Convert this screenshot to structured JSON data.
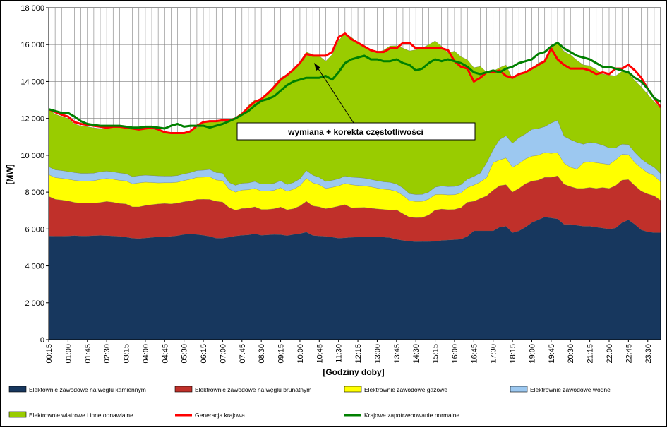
{
  "chart_data": {
    "type": "area",
    "xlabel": "[Godziny doby]",
    "ylabel": "[MW]",
    "ylim": [
      0,
      18000
    ],
    "y_ticks": [
      "0",
      "2 000",
      "4 000",
      "6 000",
      "8 000",
      "10 000",
      "12 000",
      "14 000",
      "16 000",
      "18 000"
    ],
    "y_tick_values": [
      0,
      2000,
      4000,
      6000,
      8000,
      10000,
      12000,
      14000,
      16000,
      18000
    ],
    "grid": true,
    "legend_position": "bottom",
    "x": [
      "00:15",
      "00:30",
      "00:45",
      "01:00",
      "01:15",
      "01:30",
      "01:45",
      "02:00",
      "02:15",
      "02:30",
      "02:45",
      "03:00",
      "03:15",
      "03:30",
      "03:45",
      "04:00",
      "04:15",
      "04:30",
      "04:45",
      "05:00",
      "05:15",
      "05:30",
      "05:45",
      "06:00",
      "06:15",
      "06:30",
      "06:45",
      "07:00",
      "07:15",
      "07:30",
      "07:45",
      "08:00",
      "08:15",
      "08:30",
      "08:45",
      "09:00",
      "09:15",
      "09:30",
      "09:45",
      "10:00",
      "10:15",
      "10:30",
      "10:45",
      "11:00",
      "11:15",
      "11:30",
      "11:45",
      "12:00",
      "12:15",
      "12:30",
      "12:45",
      "13:00",
      "13:15",
      "13:30",
      "13:45",
      "14:00",
      "14:15",
      "14:30",
      "14:45",
      "15:00",
      "15:15",
      "15:30",
      "15:45",
      "16:00",
      "16:15",
      "16:30",
      "16:45",
      "17:00",
      "17:15",
      "17:30",
      "17:45",
      "18:00",
      "18:15",
      "18:30",
      "18:45",
      "19:00",
      "19:15",
      "19:30",
      "19:45",
      "20:00",
      "20:15",
      "20:30",
      "20:45",
      "21:00",
      "21:15",
      "21:30",
      "21:45",
      "22:00",
      "22:15",
      "22:30",
      "22:45",
      "23:00",
      "23:15",
      "23:30",
      "23:45",
      "24:00"
    ],
    "x_tick_labels": [
      "00:15",
      "01:00",
      "01:45",
      "02:30",
      "03:15",
      "04:00",
      "04:45",
      "05:30",
      "06:15",
      "07:00",
      "07:45",
      "08:30",
      "09:15",
      "10:00",
      "10:45",
      "11:30",
      "12:15",
      "13:00",
      "13:45",
      "14:30",
      "15:15",
      "16:00",
      "16:45",
      "17:30",
      "18:15",
      "19:00",
      "19:45",
      "20:30",
      "21:15",
      "22:00",
      "22:45",
      "23:30"
    ],
    "annotation": "wymiana + korekta częstotliwości",
    "stack_series": [
      {
        "name": "Elektownie zawodowe na węglu kamiennym",
        "color": "#17375E",
        "values": [
          5620,
          5610,
          5610,
          5620,
          5640,
          5620,
          5620,
          5640,
          5650,
          5640,
          5620,
          5600,
          5560,
          5500,
          5480,
          5510,
          5540,
          5580,
          5580,
          5600,
          5640,
          5700,
          5740,
          5700,
          5660,
          5600,
          5500,
          5500,
          5560,
          5620,
          5660,
          5680,
          5740,
          5660,
          5680,
          5700,
          5690,
          5640,
          5700,
          5750,
          5830,
          5650,
          5620,
          5600,
          5560,
          5500,
          5520,
          5550,
          5560,
          5580,
          5580,
          5580,
          5560,
          5530,
          5440,
          5380,
          5340,
          5310,
          5320,
          5320,
          5330,
          5380,
          5400,
          5420,
          5450,
          5600,
          5900,
          5900,
          5900,
          5900,
          6100,
          6150,
          5800,
          5900,
          6100,
          6350,
          6500,
          6650,
          6600,
          6550,
          6250,
          6250,
          6200,
          6150,
          6150,
          6100,
          6050,
          6000,
          6050,
          6350,
          6500,
          6250,
          5950,
          5850,
          5800,
          5800
        ]
      },
      {
        "name": "Elektrownie zawodowe na węglu brunatnym",
        "color": "#C0302A",
        "values": [
          2150,
          2000,
          1960,
          1900,
          1800,
          1780,
          1780,
          1760,
          1790,
          1850,
          1830,
          1780,
          1800,
          1700,
          1720,
          1760,
          1780,
          1780,
          1800,
          1760,
          1760,
          1780,
          1780,
          1900,
          1950,
          2000,
          2000,
          1960,
          1600,
          1400,
          1450,
          1450,
          1460,
          1400,
          1380,
          1400,
          1500,
          1400,
          1400,
          1500,
          1670,
          1600,
          1580,
          1500,
          1600,
          1740,
          1800,
          1600,
          1600,
          1590,
          1550,
          1510,
          1500,
          1500,
          1600,
          1450,
          1300,
          1300,
          1300,
          1440,
          1700,
          1700,
          1650,
          1640,
          1700,
          1850,
          1600,
          1750,
          1900,
          2200,
          2250,
          2250,
          2200,
          2300,
          2350,
          2250,
          2150,
          2150,
          2200,
          2330,
          2180,
          2050,
          2000,
          2050,
          2100,
          2100,
          2200,
          2200,
          2300,
          2300,
          2180,
          2100,
          2100,
          2050,
          2000,
          1750
        ]
      },
      {
        "name": "Elektrownie zawodowe gazowe",
        "color": "#FFFF00",
        "values": [
          1180,
          1180,
          1180,
          1180,
          1200,
          1200,
          1200,
          1220,
          1250,
          1250,
          1250,
          1260,
          1250,
          1250,
          1300,
          1270,
          1200,
          1140,
          1130,
          1150,
          1140,
          1150,
          1180,
          1200,
          1200,
          1230,
          1160,
          1160,
          1000,
          980,
          1000,
          1000,
          1000,
          1000,
          1000,
          1000,
          1050,
          1000,
          1060,
          1100,
          1250,
          1250,
          1200,
          1100,
          1100,
          1100,
          1150,
          1250,
          1200,
          1170,
          1160,
          1130,
          1100,
          1100,
          1000,
          1000,
          900,
          880,
          880,
          860,
          840,
          800,
          800,
          800,
          800,
          800,
          880,
          900,
          1000,
          1500,
          1400,
          1450,
          1350,
          1350,
          1350,
          1350,
          1350,
          1350,
          1300,
          1270,
          1150,
          1050,
          1050,
          1400,
          1400,
          1400,
          1300,
          1300,
          1400,
          1400,
          1350,
          1250,
          1250,
          1150,
          1100,
          1000
        ]
      },
      {
        "name": "Elektrownie zawodowe wodne",
        "color": "#9CC8F0",
        "values": [
          430,
          420,
          420,
          420,
          420,
          420,
          420,
          410,
          410,
          400,
          400,
          400,
          390,
          390,
          390,
          380,
          380,
          380,
          360,
          360,
          360,
          360,
          360,
          370,
          380,
          400,
          400,
          410,
          360,
          370,
          370,
          370,
          380,
          380,
          380,
          380,
          380,
          370,
          360,
          370,
          420,
          420,
          400,
          380,
          380,
          380,
          400,
          410,
          430,
          420,
          400,
          400,
          400,
          400,
          400,
          400,
          380,
          380,
          380,
          380,
          400,
          450,
          450,
          450,
          450,
          450,
          470,
          480,
          800,
          700,
          1100,
          1200,
          1300,
          1400,
          1350,
          1450,
          1450,
          1400,
          1650,
          1750,
          1450,
          1500,
          1450,
          1000,
          1050,
          1050,
          1000,
          900,
          650,
          550,
          550,
          550,
          500,
          500,
          450,
          450
        ]
      },
      {
        "name": "Elektrownie wiatrowe i inne odnawialne",
        "color": "#99CC00",
        "values": [
          3120,
          3020,
          2930,
          2880,
          2640,
          2570,
          2530,
          2460,
          2350,
          2320,
          2450,
          2460,
          2500,
          2560,
          2520,
          2600,
          2510,
          2500,
          2430,
          2330,
          2300,
          2210,
          2240,
          2330,
          2560,
          2620,
          2800,
          2790,
          3330,
          3630,
          3770,
          4200,
          4420,
          4560,
          4860,
          5320,
          5580,
          5990,
          6070,
          6380,
          6430,
          6540,
          6590,
          6520,
          6820,
          7500,
          7750,
          7590,
          7330,
          7180,
          7010,
          6960,
          7140,
          7400,
          7500,
          7580,
          7740,
          7850,
          7940,
          8000,
          7930,
          7580,
          7250,
          7340,
          6950,
          6480,
          5900,
          5790,
          4900,
          4260,
          3900,
          3850,
          3500,
          3450,
          3350,
          3300,
          3550,
          3600,
          4050,
          4200,
          4600,
          4600,
          4450,
          4300,
          4150,
          4000,
          3850,
          3950,
          3900,
          3950,
          3850,
          3900,
          3900,
          3750,
          3550,
          3550
        ]
      }
    ],
    "line_series": [
      {
        "name": "Generacja krajowa",
        "color": "#FF0000",
        "values": [
          12500,
          12350,
          12200,
          12100,
          11800,
          11700,
          11650,
          11600,
          11550,
          11500,
          11550,
          11550,
          11500,
          11450,
          11400,
          11450,
          11500,
          11400,
          11250,
          11200,
          11200,
          11200,
          11300,
          11600,
          11800,
          11850,
          11850,
          11900,
          11900,
          12000,
          12250,
          12600,
          12900,
          13050,
          13350,
          13700,
          14100,
          14350,
          14650,
          15000,
          15500,
          15400,
          15400,
          15400,
          15600,
          16400,
          16600,
          16300,
          16100,
          15900,
          15700,
          15600,
          15600,
          15800,
          15800,
          16100,
          16100,
          15800,
          15800,
          15800,
          15800,
          15800,
          15700,
          15100,
          14800,
          14700,
          14000,
          14200,
          14500,
          14500,
          14600,
          14300,
          14200,
          14400,
          14500,
          14700,
          14900,
          15100,
          15800,
          15200,
          14900,
          14700,
          14700,
          14700,
          14600,
          14400,
          14500,
          14400,
          14700,
          14700,
          14900,
          14600,
          14200,
          13600,
          13100,
          12600
        ]
      },
      {
        "name": "Krajowe zapotrzebowanie normalne",
        "color": "#008000",
        "values": [
          12500,
          12400,
          12300,
          12300,
          12100,
          11850,
          11700,
          11650,
          11600,
          11600,
          11600,
          11600,
          11550,
          11500,
          11500,
          11550,
          11550,
          11500,
          11450,
          11600,
          11700,
          11550,
          11600,
          11600,
          11600,
          11500,
          11600,
          11700,
          11850,
          12000,
          12200,
          12400,
          12700,
          12950,
          13050,
          13200,
          13500,
          13800,
          14000,
          14100,
          14200,
          14200,
          14200,
          14300,
          14100,
          14500,
          15000,
          15200,
          15300,
          15400,
          15200,
          15200,
          15100,
          15100,
          15200,
          15000,
          14900,
          14600,
          14700,
          15000,
          15200,
          15100,
          15200,
          15100,
          15000,
          14800,
          14500,
          14400,
          14500,
          14600,
          14500,
          14700,
          14800,
          15000,
          15100,
          15200,
          15500,
          15600,
          15900,
          16100,
          15800,
          15600,
          15400,
          15300,
          15200,
          15000,
          14800,
          14800,
          14700,
          14600,
          14500,
          14200,
          14000,
          13600,
          13100,
          12900
        ]
      }
    ],
    "legend": [
      {
        "label": "Elektownie zawodowe na węglu kamiennym",
        "color": "#17375E",
        "kind": "box"
      },
      {
        "label": "Elektrownie zawodowe na węglu brunatnym",
        "color": "#C0302A",
        "kind": "box"
      },
      {
        "label": "Elektrownie zawodowe gazowe",
        "color": "#FFFF00",
        "kind": "box"
      },
      {
        "label": "Elektrownie zawodowe wodne",
        "color": "#9CC8F0",
        "kind": "box"
      },
      {
        "label": "Elektrownie wiatrowe i inne odnawialne",
        "color": "#99CC00",
        "kind": "box"
      },
      {
        "label": "Generacja krajowa",
        "color": "#FF0000",
        "kind": "line"
      },
      {
        "label": "Krajowe zapotrzebowanie normalne",
        "color": "#008000",
        "kind": "line"
      }
    ]
  }
}
